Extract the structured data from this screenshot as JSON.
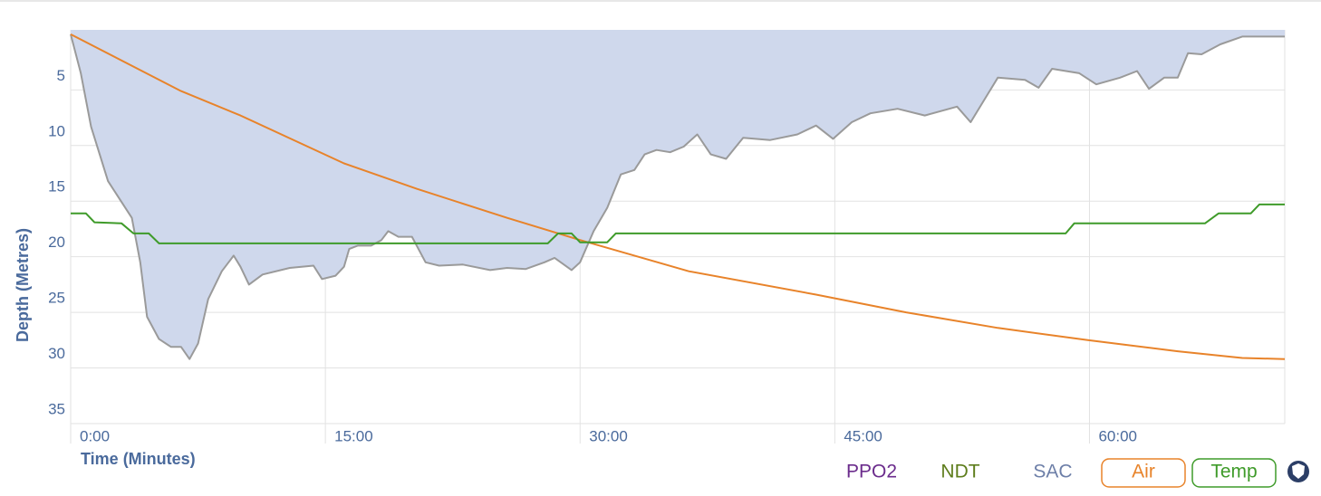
{
  "chart_data": {
    "type": "line",
    "xlabel": "Time (Minutes)",
    "ylabel": "Depth (Metres)",
    "xlim": [
      0,
      71.5
    ],
    "ylim": [
      -0.4,
      35
    ],
    "y_inverted": true,
    "grid": true,
    "xticks": [
      {
        "value": 0,
        "label": "0:00"
      },
      {
        "value": 15,
        "label": "15:00"
      },
      {
        "value": 30,
        "label": "30:00"
      },
      {
        "value": 45,
        "label": "45:00"
      },
      {
        "value": 60,
        "label": "60:00"
      }
    ],
    "yticks": [
      5,
      10,
      15,
      20,
      25,
      30,
      35
    ],
    "series": [
      {
        "style": "area",
        "color": "#9a9a9a",
        "fill": "#cfd8ec",
        "x": [
          0,
          0.6,
          1.2,
          2.2,
          3.6,
          4.1,
          4.5,
          5.2,
          5.9,
          6.5,
          7.0,
          7.5,
          8.1,
          8.9,
          9.6,
          10.0,
          10.5,
          11.3,
          12.9,
          14.3,
          14.8,
          15.6,
          16.1,
          16.4,
          16.9,
          17.7,
          18.3,
          18.7,
          19.3,
          20.1,
          20.9,
          21.7,
          23.1,
          24.7,
          25.7,
          26.8,
          27.9,
          28.5,
          29.5,
          30.0,
          30.8,
          31.6,
          32.4,
          33.2,
          33.8,
          34.5,
          35.3,
          36.1,
          36.9,
          37.7,
          38.6,
          39.6,
          41.2,
          42.8,
          43.9,
          44.9,
          46.0,
          47.1,
          48.7,
          50.3,
          52.2,
          53.0,
          53.8,
          54.6,
          56.2,
          57.0,
          57.8,
          59.4,
          60.4,
          61.8,
          62.8,
          63.5,
          64.4,
          65.2,
          65.8,
          66.6,
          67.7,
          69.0,
          71.5
        ],
        "values": [
          0,
          3.5,
          8.3,
          13.2,
          16.5,
          20.5,
          25.4,
          27.4,
          28.1,
          28.1,
          29.2,
          27.8,
          23.8,
          21.3,
          19.9,
          20.9,
          22.5,
          21.6,
          21.0,
          20.8,
          22.0,
          21.7,
          20.9,
          19.3,
          19.0,
          19.0,
          18.5,
          17.7,
          18.2,
          18.2,
          20.5,
          20.8,
          20.7,
          21.2,
          21.0,
          21.1,
          20.5,
          20.1,
          21.2,
          20.5,
          17.7,
          15.6,
          12.6,
          12.2,
          10.8,
          10.4,
          10.6,
          10.1,
          9.0,
          10.8,
          11.2,
          9.3,
          9.5,
          9.0,
          8.2,
          9.4,
          7.9,
          7.1,
          6.7,
          7.3,
          6.5,
          7.9,
          5.9,
          3.9,
          4.1,
          4.8,
          3.1,
          3.5,
          4.5,
          3.9,
          3.3,
          4.9,
          3.9,
          3.9,
          1.7,
          1.8,
          0.9,
          0.2,
          0.2
        ]
      },
      {
        "name": "Air",
        "style": "line",
        "color": "#e8832a",
        "x": [
          0,
          6.5,
          10.0,
          16.1,
          20.4,
          25.7,
          30.0,
          36.4,
          43.9,
          49.2,
          54.6,
          59.9,
          65.2,
          69.0,
          71.5
        ],
        "values": [
          0,
          5.1,
          7.3,
          11.6,
          13.9,
          16.5,
          18.5,
          21.3,
          23.4,
          25.0,
          26.4,
          27.5,
          28.5,
          29.1,
          29.2
        ]
      },
      {
        "name": "Temp",
        "style": "line",
        "color": "#3f9b2a",
        "x": [
          0,
          0.9,
          1.4,
          3.0,
          3.7,
          4.6,
          5.2,
          28.1,
          28.7,
          29.5,
          30.0,
          31.6,
          32.1,
          58.6,
          59.1,
          66.8,
          67.6,
          69.5,
          70.0,
          71.5
        ],
        "values": [
          16.1,
          16.1,
          16.9,
          17.0,
          17.9,
          17.9,
          18.8,
          18.8,
          17.9,
          17.9,
          18.7,
          18.7,
          17.9,
          17.9,
          17.0,
          17.0,
          16.1,
          16.1,
          15.3,
          15.3
        ]
      }
    ],
    "toggles": [
      {
        "label": "PPO2",
        "color": "#6b2c8c"
      },
      {
        "label": "NDT",
        "color": "#5e7d1c"
      },
      {
        "label": "SAC",
        "color": "#6d7fa8"
      }
    ]
  }
}
